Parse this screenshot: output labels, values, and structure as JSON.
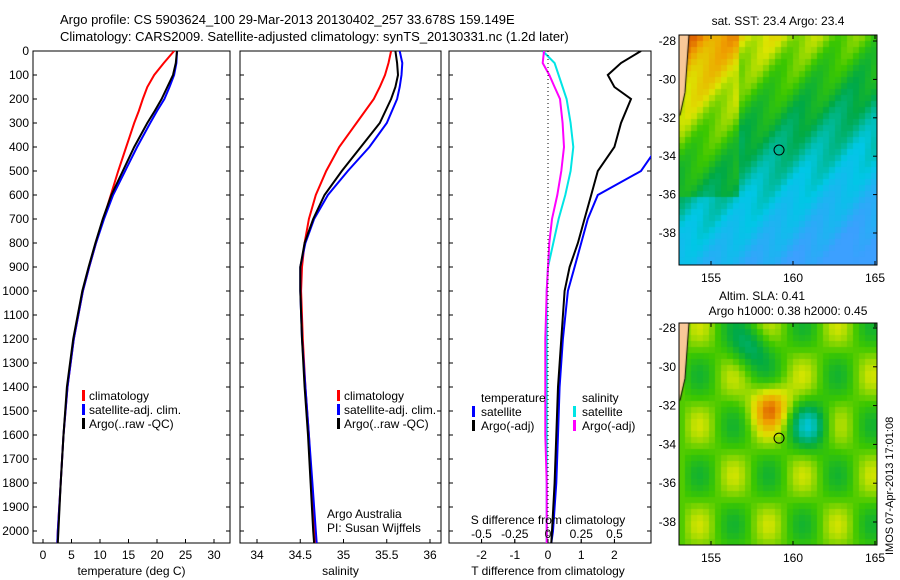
{
  "title_line1": "Argo profile: CS 5903624_100 29-Mar-2013 20130402_257 33.678S 159.149E",
  "title_line2": "Climatology: CARS2009. Satellite-adjusted climatology: synTS_20130331.nc (1.2d later)",
  "credit1": "Argo Australia",
  "credit2": "PI: Susan Wijffels",
  "stamp": "IMOS 07-Apr-2013 17:01:08",
  "colors": {
    "clim": "#ff0000",
    "sat": "#0000ff",
    "argo": "#000000",
    "ssat": "#00e5e5",
    "sargo": "#ff00ff"
  },
  "chart_data": [
    {
      "type": "line",
      "title": "",
      "xlabel": "temperature (deg C)",
      "ylabel": "",
      "xlim": [
        -1.5,
        31
      ],
      "ylim": [
        2050,
        0
      ],
      "xticks": [
        "0",
        "5",
        "10",
        "15",
        "20",
        "25",
        "30"
      ],
      "yticks": [
        "0",
        "100",
        "200",
        "300",
        "400",
        "500",
        "600",
        "700",
        "800",
        "900",
        "1000",
        "1100",
        "1200",
        "1300",
        "1400",
        "1500",
        "1600",
        "1700",
        "1800",
        "1900",
        "2000"
      ],
      "legend": [
        "climatology",
        "satellite-adj. clim.",
        "Argo(..raw -QC)"
      ],
      "depth": [
        0,
        50,
        100,
        150,
        200,
        250,
        300,
        400,
        500,
        600,
        700,
        800,
        900,
        1000,
        1200,
        1400,
        1600,
        1800,
        2000,
        2050
      ],
      "series": [
        {
          "name": "climatology",
          "values": [
            23.0,
            21.2,
            19.5,
            18.3,
            17.5,
            16.8,
            16.0,
            14.6,
            13.2,
            11.9,
            10.6,
            9.3,
            8.1,
            7.0,
            5.4,
            4.3,
            3.6,
            3.1,
            2.6,
            2.5
          ]
        },
        {
          "name": "satellite-adj. clim.",
          "values": [
            23.5,
            23.4,
            23.0,
            22.2,
            21.3,
            20.0,
            18.8,
            16.5,
            14.4,
            12.3,
            10.7,
            9.3,
            8.1,
            7.0,
            5.4,
            4.3,
            3.6,
            3.1,
            2.6,
            2.5
          ]
        },
        {
          "name": "Argo(..raw -QC)",
          "values": [
            23.5,
            23.3,
            22.8,
            21.8,
            20.8,
            19.6,
            18.3,
            16.0,
            14.0,
            12.0,
            10.5,
            9.2,
            8.0,
            6.9,
            5.3,
            4.2,
            3.6,
            3.1,
            2.7,
            2.6
          ]
        }
      ]
    },
    {
      "type": "line",
      "title": "",
      "xlabel": "salinity",
      "ylabel": "",
      "xlim": [
        33.8,
        36.05
      ],
      "ylim": [
        2050,
        0
      ],
      "xticks": [
        "34",
        "34.5",
        "35",
        "35.5",
        "36"
      ],
      "legend": [
        "climatology",
        "satellite-adj. clim.",
        "Argo(..raw -QC)"
      ],
      "depth": [
        0,
        50,
        100,
        150,
        200,
        300,
        400,
        500,
        600,
        700,
        800,
        900,
        1000,
        1200,
        1400,
        1600,
        1800,
        2000,
        2050
      ],
      "series": [
        {
          "name": "climatology",
          "values": [
            35.55,
            35.52,
            35.48,
            35.42,
            35.35,
            35.15,
            34.95,
            34.8,
            34.68,
            34.6,
            34.55,
            34.52,
            34.51,
            34.53,
            34.56,
            34.6,
            34.63,
            34.66,
            34.67
          ]
        },
        {
          "name": "satellite-adj. clim.",
          "values": [
            35.65,
            35.68,
            35.67,
            35.65,
            35.62,
            35.5,
            35.3,
            35.05,
            34.82,
            34.66,
            34.56,
            34.5,
            34.5,
            34.52,
            34.56,
            34.6,
            34.64,
            34.68,
            34.69
          ]
        },
        {
          "name": "Argo(..raw -QC)",
          "values": [
            35.6,
            35.62,
            35.63,
            35.6,
            35.55,
            35.42,
            35.2,
            34.98,
            34.78,
            34.65,
            34.55,
            34.5,
            34.5,
            34.52,
            34.55,
            34.59,
            34.62,
            34.65,
            34.66
          ]
        }
      ]
    },
    {
      "type": "line",
      "title": "",
      "xlabel": "T difference from climatology",
      "x2label": "S difference from climatology",
      "xlim": [
        -3,
        3
      ],
      "ylim": [
        2050,
        0
      ],
      "xticks": [
        "-2",
        "-1",
        "0",
        "1",
        "2"
      ],
      "x2ticks": [
        "-0.5",
        "-0.25",
        "0",
        "0.25",
        "0.5"
      ],
      "legend_t": [
        "temperature",
        "satellite",
        "Argo(-adj)"
      ],
      "legend_s": [
        "salinity",
        "satellite",
        "Argo(-adj)"
      ],
      "depth": [
        0,
        50,
        100,
        150,
        200,
        300,
        400,
        500,
        600,
        700,
        800,
        900,
        1000,
        1200,
        1400,
        1600,
        1800,
        2000,
        2050
      ],
      "series": [
        {
          "name": "T satellite",
          "axis": "T",
          "values": [
            3.5,
            3.3,
            3.2,
            3.2,
            3.4,
            3.3,
            3.3,
            2.8,
            1.5,
            1.2,
            1.0,
            0.8,
            0.6,
            0.45,
            0.35,
            0.3,
            0.25,
            0.15,
            0.1
          ]
        },
        {
          "name": "T Argo(-adj)",
          "axis": "T",
          "values": [
            2.8,
            2.2,
            1.8,
            2.0,
            2.5,
            2.2,
            2.0,
            1.5,
            1.3,
            1.1,
            0.9,
            0.65,
            0.5,
            0.4,
            0.3,
            0.25,
            0.2,
            0.12,
            0.1
          ]
        },
        {
          "name": "S satellite",
          "axis": "S",
          "values": [
            -0.04,
            0.05,
            0.08,
            0.11,
            0.14,
            0.17,
            0.19,
            0.17,
            0.13,
            0.08,
            0.04,
            0.0,
            -0.01,
            -0.01,
            -0.01,
            -0.01,
            -0.01,
            -0.01,
            -0.01
          ]
        },
        {
          "name": "S Argo(-adj)",
          "axis": "S",
          "values": [
            -0.03,
            -0.04,
            0.01,
            0.05,
            0.09,
            0.11,
            0.12,
            0.1,
            0.07,
            0.03,
            0.01,
            0.0,
            -0.01,
            -0.02,
            -0.02,
            -0.02,
            -0.01,
            -0.01,
            -0.01
          ]
        }
      ]
    },
    {
      "type": "heatmap",
      "title": "sat. SST: 23.4 Argo: 23.4",
      "xticks": [
        "155",
        "160",
        "165"
      ],
      "yticks": [
        "-28",
        "-30",
        "-32",
        "-34",
        "-36",
        "-38"
      ],
      "xlim": [
        153,
        165.2
      ],
      "ylim": [
        -39.6,
        -27.7
      ],
      "marker": [
        159.149,
        -33.678
      ]
    },
    {
      "type": "heatmap",
      "title": "Altim. SLA: 0.41",
      "subtitle": "Argo h1000: 0.38 h2000: 0.45",
      "xticks": [
        "155",
        "160",
        "165"
      ],
      "yticks": [
        "-28",
        "-30",
        "-32",
        "-34",
        "-36",
        "-38"
      ],
      "xlim": [
        153,
        165.2
      ],
      "ylim": [
        -39.6,
        -27.7
      ],
      "marker": [
        159.149,
        -33.678
      ]
    }
  ]
}
